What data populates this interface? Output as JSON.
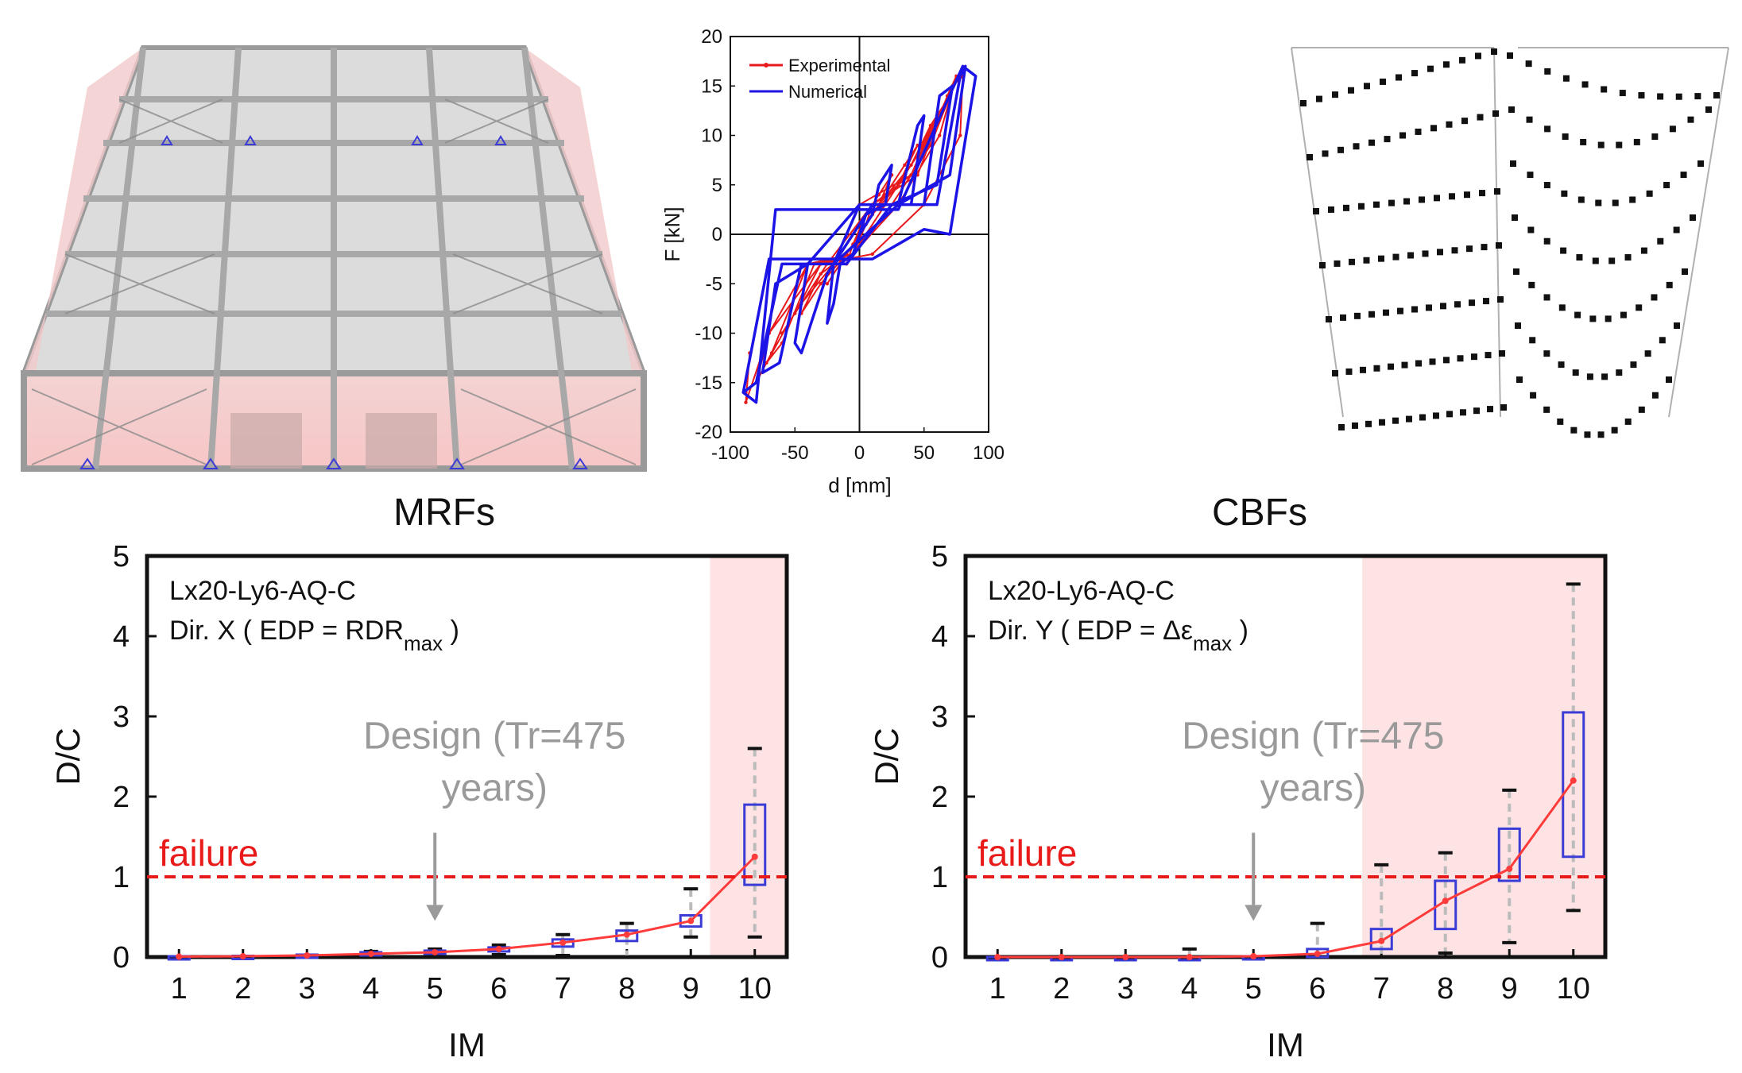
{
  "chart_data": [
    {
      "type": "line",
      "xlabel": "d  [mm]",
      "ylabel": "F  [kN]",
      "xlim": [
        -100,
        100
      ],
      "ylim": [
        -20,
        20
      ],
      "xticks": [
        "-100",
        "-50",
        "0",
        "50",
        "100"
      ],
      "yticks": [
        "20",
        "15",
        "10",
        "5",
        "0",
        "-5",
        "-10",
        "-15",
        "-20"
      ],
      "grid": false,
      "legend": "top-left",
      "series": [
        {
          "name": "Experimental",
          "color": "#e8191c",
          "x": [
            0,
            5,
            10,
            5,
            -5,
            -10,
            -5,
            5,
            15,
            25,
            15,
            0,
            -15,
            -25,
            -15,
            0,
            20,
            35,
            45,
            30,
            10,
            -10,
            -30,
            -45,
            -30,
            -10,
            15,
            40,
            55,
            60,
            45,
            20,
            -5,
            -30,
            -50,
            -60,
            -45,
            -20,
            10,
            40,
            60,
            70,
            55,
            25,
            -5,
            -35,
            -60,
            -72,
            -55,
            -25,
            10,
            45,
            68,
            75,
            62,
            30,
            -5,
            -40,
            -68,
            -80,
            -70,
            -40,
            0,
            40,
            72,
            80,
            78,
            50,
            10,
            -30,
            -70,
            -88,
            -85
          ],
          "y": [
            0,
            2,
            3,
            1,
            -2,
            -3,
            -1,
            2,
            4,
            6,
            3,
            0,
            -3,
            -5,
            -3,
            0,
            4,
            7,
            9,
            5,
            2,
            -2,
            -4,
            -8,
            -5,
            -2,
            3,
            7,
            11,
            12,
            8,
            3,
            -2,
            -3,
            -8,
            -10,
            -7,
            -3,
            3,
            6,
            12,
            14,
            9,
            3,
            -2,
            -3,
            -11,
            -13,
            -9,
            -3,
            3,
            6,
            14,
            16,
            10,
            3,
            -2,
            -3,
            -12,
            -15,
            -10,
            -3,
            3,
            6,
            15,
            16,
            10,
            3,
            -2,
            -3,
            -10,
            -17,
            -12
          ]
        },
        {
          "name": "Numerical",
          "color": "#1c14e6",
          "x": [
            0,
            10,
            15,
            25,
            20,
            5,
            -5,
            -15,
            -20,
            -25,
            -20,
            0,
            30,
            45,
            50,
            40,
            10,
            -20,
            -40,
            -50,
            -45,
            -25,
            10,
            50,
            62,
            72,
            60,
            25,
            -10,
            -45,
            -62,
            -75,
            -65,
            -40,
            0,
            60,
            78,
            82,
            70,
            30,
            -20,
            -60,
            -80,
            -90,
            -80,
            -65,
            -20,
            30,
            80,
            90,
            70,
            50,
            10,
            -30,
            -70,
            -90
          ],
          "y": [
            0,
            2,
            5,
            7,
            3,
            2,
            -2,
            -3,
            -7,
            -9,
            -3,
            3,
            3,
            11,
            12,
            3,
            3,
            -3,
            -3,
            -11,
            -12,
            -4,
            3,
            3,
            14,
            15,
            5,
            3,
            -3,
            -3,
            -13,
            -14,
            -5,
            -3,
            3,
            3,
            16,
            17,
            6,
            3,
            -3,
            -3,
            -15,
            -16,
            -17,
            2.5,
            2.5,
            2.5,
            17,
            16,
            0,
            0.5,
            -2.5,
            -2.5,
            -2.5,
            -16
          ]
        }
      ]
    },
    {
      "type": "box",
      "title": "MRFs",
      "xlabel": "IM",
      "ylabel": "D/C",
      "xlim": [
        0.5,
        10.5
      ],
      "ylim": [
        0,
        5
      ],
      "categories": [
        "1",
        "2",
        "3",
        "4",
        "5",
        "6",
        "7",
        "8",
        "9",
        "10"
      ],
      "yticks": [
        "5",
        "4",
        "3",
        "2",
        "1",
        "0"
      ],
      "info_line1": "Lx20-Ly6-AQ-C",
      "info_line2_prefix": "Dir. X ( EDP = RDR",
      "info_line2_sub": "max",
      "info_line2_suffix": " )",
      "median": [
        0.005,
        0.01,
        0.02,
        0.04,
        0.06,
        0.1,
        0.18,
        0.28,
        0.45,
        1.25
      ],
      "box_q1": [
        0,
        0.005,
        0.01,
        0.02,
        0.04,
        0.07,
        0.13,
        0.2,
        0.38,
        0.9
      ],
      "box_q3": [
        0.01,
        0.015,
        0.03,
        0.06,
        0.08,
        0.12,
        0.22,
        0.33,
        0.52,
        1.9
      ],
      "whisker_low": [
        0,
        0,
        0,
        0,
        0.02,
        0.03,
        0.02,
        0,
        0.25,
        0.25
      ],
      "whisker_high": [
        0.01,
        0.02,
        0.04,
        0.07,
        0.1,
        0.15,
        0.28,
        0.42,
        0.85,
        2.6
      ],
      "failure_level": 1,
      "failure_label": "failure",
      "failure_region_from_im": 9.3,
      "design_label_line1": "Design (Tr=475",
      "design_label_line2": "years)",
      "design_im": 5,
      "colors": {
        "median_line": "#ff3b3b",
        "box": "#3b3bd6",
        "failure": "#e81a1a",
        "region": "#fde3e3",
        "design": "#9a9a9a"
      }
    },
    {
      "type": "box",
      "title": "CBFs",
      "xlabel": "IM",
      "ylabel": "D/C",
      "xlim": [
        0.5,
        10.5
      ],
      "ylim": [
        0,
        5
      ],
      "categories": [
        "1",
        "2",
        "3",
        "4",
        "5",
        "6",
        "7",
        "8",
        "9",
        "10"
      ],
      "yticks": [
        "5",
        "4",
        "3",
        "2",
        "1",
        "0"
      ],
      "info_line1": "Lx20-Ly6-AQ-C",
      "info_line2_prefix": "Dir. Y ( EDP = Δε",
      "info_line2_sub": "max",
      "info_line2_suffix": " )",
      "median": [
        0,
        0,
        0,
        0,
        0.01,
        0.04,
        0.2,
        0.7,
        1.1,
        2.2
      ],
      "box_q1": [
        0,
        0,
        0,
        0,
        0,
        0,
        0.1,
        0.35,
        0.95,
        1.25
      ],
      "box_q3": [
        0,
        0,
        0,
        0,
        0.01,
        0.1,
        0.35,
        0.95,
        1.6,
        3.05
      ],
      "whisker_low": [
        0,
        0,
        0,
        0,
        0,
        0,
        0,
        0.05,
        0.18,
        0.58
      ],
      "whisker_high": [
        0,
        0,
        0,
        0.1,
        0.02,
        0.42,
        1.15,
        1.3,
        2.08,
        4.65
      ],
      "failure_level": 1,
      "failure_label": "failure",
      "failure_region_from_im": 6.7,
      "design_label_line1": "Design (Tr=475",
      "design_label_line2": "years)",
      "design_im": 5,
      "colors": {
        "median_line": "#ff3b3b",
        "box": "#3b3bd6",
        "failure": "#e81a1a",
        "region": "#fde3e3",
        "design": "#9a9a9a"
      }
    }
  ],
  "hyst_colors": {
    "axes": "#111111",
    "exp": "#e8191c",
    "num": "#1c14e6"
  }
}
